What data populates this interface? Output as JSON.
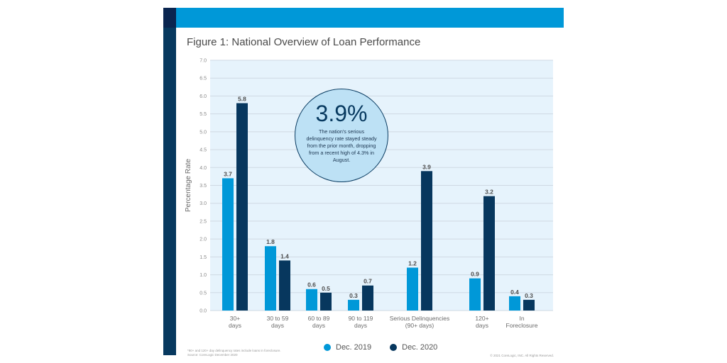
{
  "figure_title": "Figure 1: National Overview of Loan Performance",
  "callout": {
    "value": "3.9%",
    "text": "The nation's serious delinquency rate stayed steady from the prior month, dropping from a recent high of 4.3% in August."
  },
  "footnote": {
    "line1": "*90+ and 120+ day delinquency rates include loans in foreclosure.",
    "line2": "Source: CoreLogic December 2020"
  },
  "copyright": "© 2021 CoreLogic, INC. All Rights Reserved.",
  "colors": {
    "dec2019": "#0098d8",
    "dec2020": "#07375e",
    "plot_bg": "#e6f3fc",
    "grid": "#cfd9e3"
  },
  "chart_data": {
    "type": "bar",
    "title": "Figure 1: National Overview of Loan Performance",
    "xlabel": "",
    "ylabel": "Percentage Rate",
    "ylim": [
      0,
      7.0
    ],
    "yticks": [
      "0.0",
      "0.5",
      "1.0",
      "1.5",
      "2.0",
      "2.5",
      "3.0",
      "3.5",
      "4.0",
      "4.5",
      "5.0",
      "5.5",
      "6.0",
      "6.5",
      "7.0"
    ],
    "grid": true,
    "legend_position": "bottom-center",
    "categories": [
      [
        "30+",
        "days"
      ],
      [
        "30 to 59",
        "days"
      ],
      [
        "60 to 89",
        "days"
      ],
      [
        "90 to 119",
        "days"
      ],
      [
        "Serious Delinquencies",
        "(90+ days)"
      ],
      [
        "120+",
        "days"
      ],
      [
        "In",
        "Foreclosure"
      ]
    ],
    "series": [
      {
        "name": "Dec. 2019",
        "values": [
          3.7,
          1.8,
          0.6,
          0.3,
          1.2,
          0.9,
          0.4
        ]
      },
      {
        "name": "Dec. 2020",
        "values": [
          5.8,
          1.4,
          0.5,
          0.7,
          3.9,
          3.2,
          0.3
        ]
      }
    ]
  }
}
